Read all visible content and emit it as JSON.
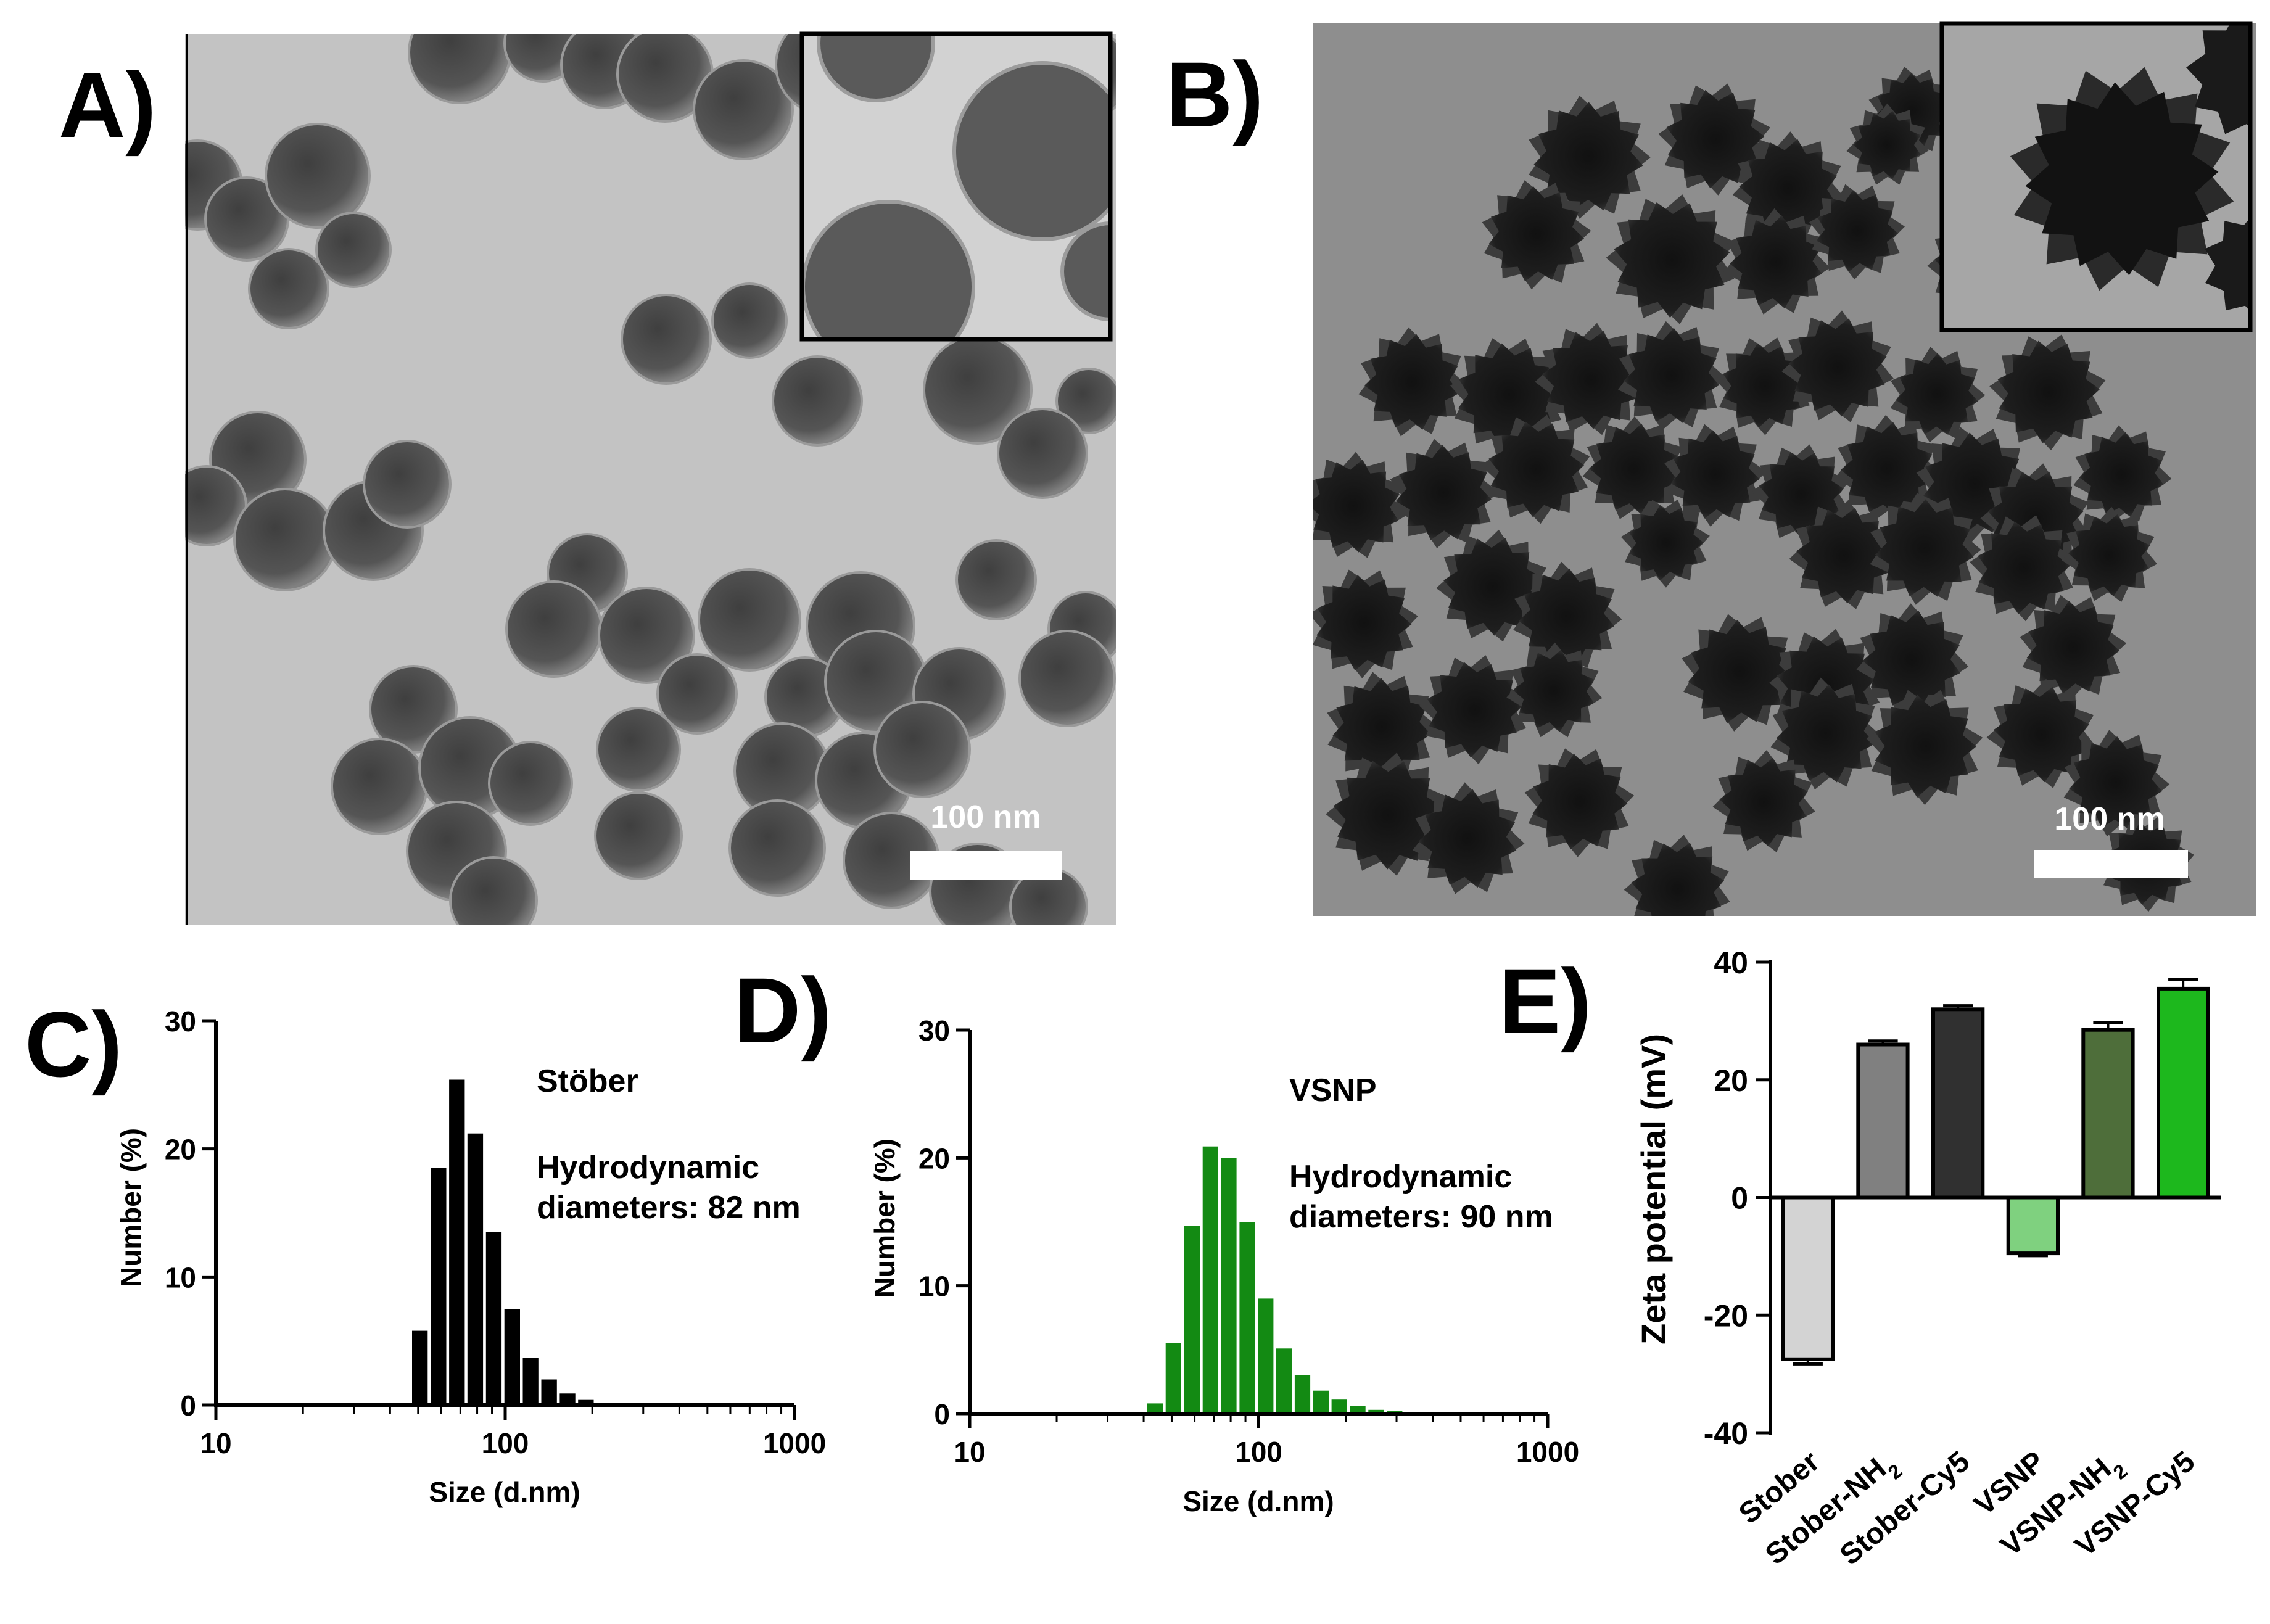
{
  "panels": {
    "A": {
      "label": "A)",
      "scale_bar": "100 nm",
      "sphere_color": "#5a5a5a",
      "background_color": "#c3c3c3"
    },
    "B": {
      "label": "B)",
      "scale_bar": "100 nm",
      "particle_color": "#1e1e1e",
      "background_color": "#8e8e8e"
    },
    "C": {
      "label": "C)"
    },
    "D": {
      "label": "D)"
    },
    "E": {
      "label": "E)"
    }
  },
  "chart_data": [
    {
      "id": "C",
      "type": "bar",
      "x_scale": "log",
      "xlabel": "Size (d.nm)",
      "ylabel": "Number (%)",
      "xlim": [
        10,
        1000
      ],
      "ylim": [
        0,
        30
      ],
      "xticks": [
        "10",
        "100",
        "1000"
      ],
      "yticks": [
        "0",
        "10",
        "20",
        "30"
      ],
      "color": "#000000",
      "annotation": {
        "title": "Stöber",
        "line1": "Hydrodynamic",
        "line2": "diameters: 82 nm"
      },
      "x": [
        50.7,
        58.8,
        68.1,
        78.8,
        91.3,
        105.7,
        122.4,
        141.8,
        164.2,
        190.1,
        220.2
      ],
      "values": [
        5.8,
        18.5,
        25.4,
        21.2,
        13.5,
        7.5,
        3.7,
        2.0,
        0.9,
        0.4,
        0.1
      ]
    },
    {
      "id": "D",
      "type": "bar",
      "x_scale": "log",
      "xlabel": "Size (d.nm)",
      "ylabel": "Number (%)",
      "xlim": [
        10,
        1000
      ],
      "ylim": [
        0,
        30
      ],
      "xticks": [
        "10",
        "100",
        "1000"
      ],
      "yticks": [
        "0",
        "10",
        "20",
        "30"
      ],
      "color": "#138a13",
      "annotation": {
        "title": "VSNP",
        "line1": "Hydrodynamic",
        "line2": "diameters: 90 nm"
      },
      "x": [
        43.8,
        50.7,
        58.8,
        68.1,
        78.8,
        91.3,
        105.7,
        122.4,
        141.8,
        164.2,
        190.1,
        220.2,
        255.0,
        295.3,
        342.0
      ],
      "values": [
        0.8,
        5.5,
        14.7,
        20.9,
        20.0,
        15.0,
        9.0,
        5.1,
        3.0,
        1.8,
        1.1,
        0.6,
        0.3,
        0.2,
        0.1
      ]
    },
    {
      "id": "E",
      "type": "bar",
      "ylabel": "Zeta potential (mV)",
      "ylim": [
        -40,
        40
      ],
      "yticks": [
        "-40",
        "-20",
        "0",
        "20",
        "40"
      ],
      "categories": [
        "Stober",
        "Stober-NH2",
        "Stober-Cy5",
        "VSNP",
        "VSNP-NH2",
        "VSNP-Cy5"
      ],
      "category_labels": [
        {
          "main": "Stober",
          "sub": ""
        },
        {
          "main": "Stober-NH",
          "sub": "2"
        },
        {
          "main": "Stober-Cy5",
          "sub": ""
        },
        {
          "main": "VSNP",
          "sub": ""
        },
        {
          "main": "VSNP-NH",
          "sub": "2"
        },
        {
          "main": "VSNP-Cy5",
          "sub": ""
        }
      ],
      "values": [
        -27.5,
        26.0,
        32.0,
        -9.5,
        28.5,
        35.5
      ],
      "errors": [
        0.8,
        0.6,
        0.6,
        0.4,
        1.2,
        1.6
      ],
      "colors": [
        "#d3d3d3",
        "#808080",
        "#303030",
        "#7fd17f",
        "#4e6e3a",
        "#1db81d"
      ]
    }
  ]
}
